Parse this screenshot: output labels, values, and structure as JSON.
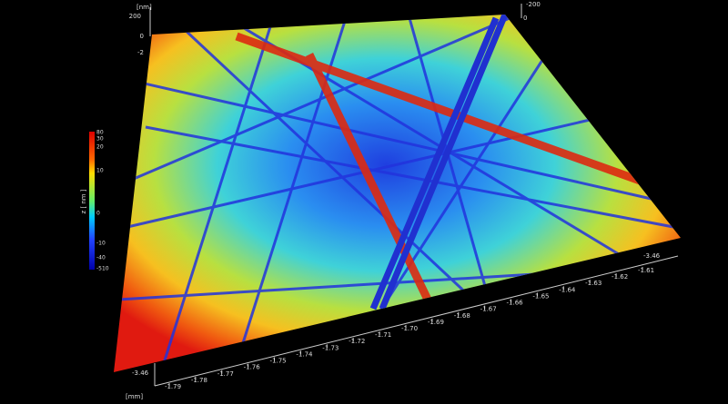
{
  "z_axis": {
    "unit": "[nm]",
    "left_ticks": [
      "200",
      "0",
      "-2"
    ],
    "right_ticks": [
      "-200",
      "0"
    ]
  },
  "colorbar": {
    "label": "z [ nm ]",
    "ticks": [
      "80",
      "30",
      "20",
      "10",
      "0",
      "-10",
      "-40",
      "-510"
    ]
  },
  "x_axis": {
    "unit": "[mm]",
    "start_label": "-3.46",
    "end_label": "-3.46",
    "ticks": [
      "-1.79",
      "-1.78",
      "-1.77",
      "-1.76",
      "-1.75",
      "-1.74",
      "-1.73",
      "-1.72",
      "-1.71",
      "-1.70",
      "-1.69",
      "-1.68",
      "-1.67",
      "-1.66",
      "-1.65",
      "-1.64",
      "-1.63",
      "-1.62",
      "-1.61"
    ]
  }
}
